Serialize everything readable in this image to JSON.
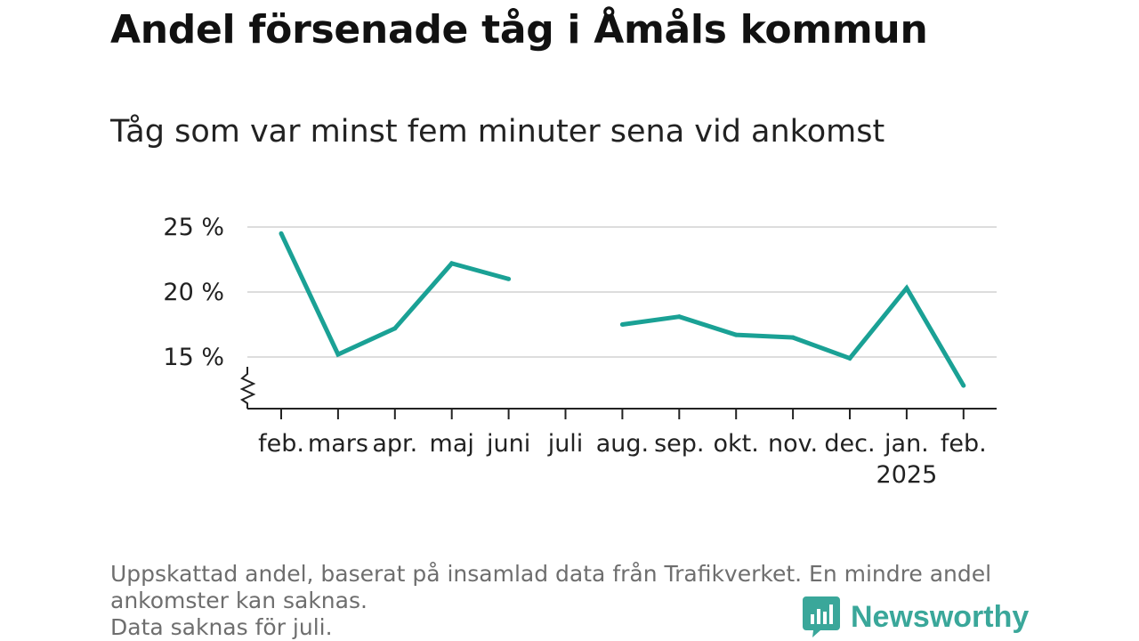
{
  "title": "Andel försenade tåg i Åmåls kommun",
  "subtitle": "Tåg som var minst fem minuter sena vid ankomst",
  "footnote": {
    "line1": "Uppskattad andel, baserat på insamlad data från Trafikverket. En mindre andel",
    "line2": "ankomster kan saknas.",
    "line3": "Data saknas för juli."
  },
  "brand": {
    "name": "Newsworthy",
    "color": "#3aa79a"
  },
  "chart_data": {
    "type": "line",
    "categories": [
      "feb.",
      "mars",
      "apr.",
      "maj",
      "juni",
      "juli",
      "aug.",
      "sep.",
      "okt.",
      "nov.",
      "dec.",
      "jan.",
      "feb."
    ],
    "year_label": "2025",
    "year_label_index": 11,
    "series": [
      {
        "values": [
          24.5,
          15.2,
          17.2,
          22.2,
          21.0,
          null,
          17.5,
          18.1,
          16.7,
          16.5,
          14.9,
          20.3,
          12.8
        ]
      }
    ],
    "yticks": [
      15,
      20,
      25
    ],
    "ytick_labels": [
      "15 %",
      "20 %",
      "25 %"
    ],
    "ylim": [
      11,
      25
    ],
    "axis_break": true,
    "grid": true,
    "line_color": "#1aa195",
    "grid_color": "#dddddd",
    "axis_color": "#222222"
  }
}
